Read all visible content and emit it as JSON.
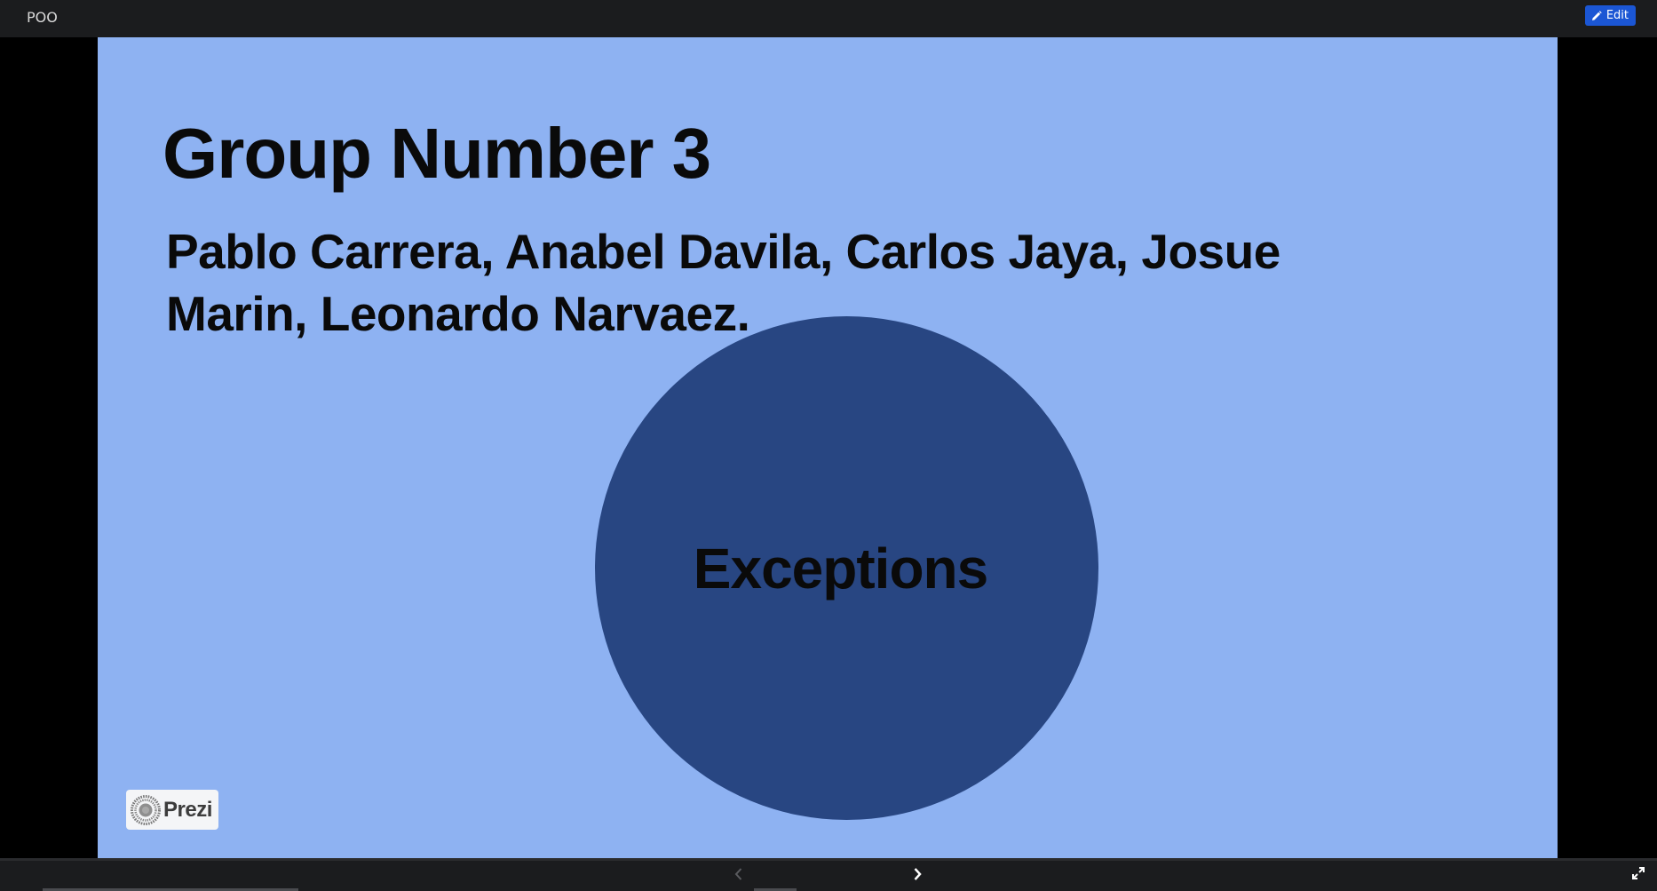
{
  "header": {
    "title": "POO",
    "edit_label": "Edit"
  },
  "slide": {
    "title": "Group Number 3",
    "authors": "Pablo Carrera, Anabel Davila, Carlos Jaya, Josue Marin, Leonardo Narvaez.",
    "topic": "Exceptions",
    "background_color": "#8eb2f2",
    "circle_color": "#284682"
  },
  "branding": {
    "logo_text": "Prezi",
    "logo_icon": "prezi-logo-icon"
  },
  "controls": {
    "prev_icon": "chevron-left-icon",
    "next_icon": "chevron-right-icon",
    "fullscreen_icon": "fullscreen-icon"
  },
  "colors": {
    "toolbar": "#1b1c1e",
    "edit_button": "#1b56d4"
  }
}
